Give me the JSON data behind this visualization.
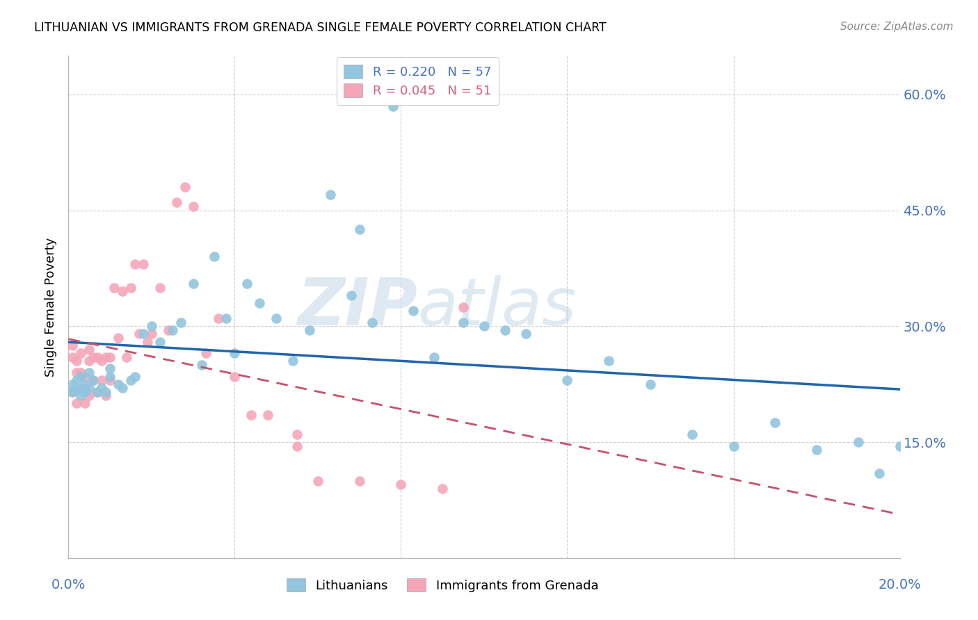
{
  "title": "LITHUANIAN VS IMMIGRANTS FROM GRENADA SINGLE FEMALE POVERTY CORRELATION CHART",
  "source": "Source: ZipAtlas.com",
  "ylabel": "Single Female Poverty",
  "watermark_part1": "ZIP",
  "watermark_part2": "atlas",
  "legend_label1": "Lithuanians",
  "legend_label2": "Immigrants from Grenada",
  "R1": 0.22,
  "N1": 57,
  "R2": 0.045,
  "N2": 51,
  "xlim": [
    0.0,
    0.2
  ],
  "ylim": [
    0.0,
    0.65
  ],
  "yticks": [
    0.15,
    0.3,
    0.45,
    0.6
  ],
  "xticks": [
    0.0,
    0.04,
    0.08,
    0.12,
    0.16,
    0.2
  ],
  "ytick_labels": [
    "15.0%",
    "30.0%",
    "45.0%",
    "60.0%"
  ],
  "color_blue": "#92c5de",
  "color_pink": "#f4a6b8",
  "line_color_blue": "#2166ac",
  "line_color_pink": "#c9506a",
  "scatter_blue_x": [
    0.001,
    0.001,
    0.002,
    0.002,
    0.003,
    0.003,
    0.003,
    0.004,
    0.004,
    0.005,
    0.005,
    0.006,
    0.007,
    0.008,
    0.009,
    0.01,
    0.01,
    0.012,
    0.013,
    0.015,
    0.016,
    0.018,
    0.02,
    0.022,
    0.025,
    0.027,
    0.03,
    0.032,
    0.035,
    0.038,
    0.04,
    0.043,
    0.046,
    0.05,
    0.054,
    0.058,
    0.063,
    0.068,
    0.073,
    0.078,
    0.083,
    0.088,
    0.095,
    0.1,
    0.105,
    0.11,
    0.12,
    0.13,
    0.14,
    0.15,
    0.16,
    0.17,
    0.18,
    0.19,
    0.195,
    0.2,
    0.07
  ],
  "scatter_blue_y": [
    0.225,
    0.215,
    0.23,
    0.22,
    0.235,
    0.218,
    0.21,
    0.225,
    0.215,
    0.24,
    0.22,
    0.23,
    0.215,
    0.22,
    0.215,
    0.245,
    0.235,
    0.225,
    0.22,
    0.23,
    0.235,
    0.29,
    0.3,
    0.28,
    0.295,
    0.305,
    0.355,
    0.25,
    0.39,
    0.31,
    0.265,
    0.355,
    0.33,
    0.31,
    0.255,
    0.295,
    0.47,
    0.34,
    0.305,
    0.585,
    0.32,
    0.26,
    0.305,
    0.3,
    0.295,
    0.29,
    0.23,
    0.255,
    0.225,
    0.16,
    0.145,
    0.175,
    0.14,
    0.15,
    0.11,
    0.145,
    0.425
  ],
  "scatter_pink_x": [
    0.001,
    0.001,
    0.001,
    0.002,
    0.002,
    0.002,
    0.003,
    0.003,
    0.004,
    0.004,
    0.004,
    0.005,
    0.005,
    0.005,
    0.006,
    0.006,
    0.007,
    0.007,
    0.008,
    0.008,
    0.009,
    0.009,
    0.01,
    0.01,
    0.011,
    0.012,
    0.013,
    0.014,
    0.015,
    0.016,
    0.017,
    0.018,
    0.019,
    0.02,
    0.022,
    0.024,
    0.026,
    0.028,
    0.03,
    0.033,
    0.036,
    0.04,
    0.044,
    0.048,
    0.055,
    0.06,
    0.07,
    0.08,
    0.09,
    0.095,
    0.055
  ],
  "scatter_pink_y": [
    0.275,
    0.26,
    0.215,
    0.255,
    0.24,
    0.2,
    0.265,
    0.24,
    0.235,
    0.22,
    0.2,
    0.27,
    0.255,
    0.21,
    0.26,
    0.23,
    0.26,
    0.215,
    0.255,
    0.23,
    0.26,
    0.21,
    0.26,
    0.23,
    0.35,
    0.285,
    0.345,
    0.26,
    0.35,
    0.38,
    0.29,
    0.38,
    0.28,
    0.29,
    0.35,
    0.295,
    0.46,
    0.48,
    0.455,
    0.265,
    0.31,
    0.235,
    0.185,
    0.185,
    0.16,
    0.1,
    0.1,
    0.095,
    0.09,
    0.325,
    0.145
  ]
}
